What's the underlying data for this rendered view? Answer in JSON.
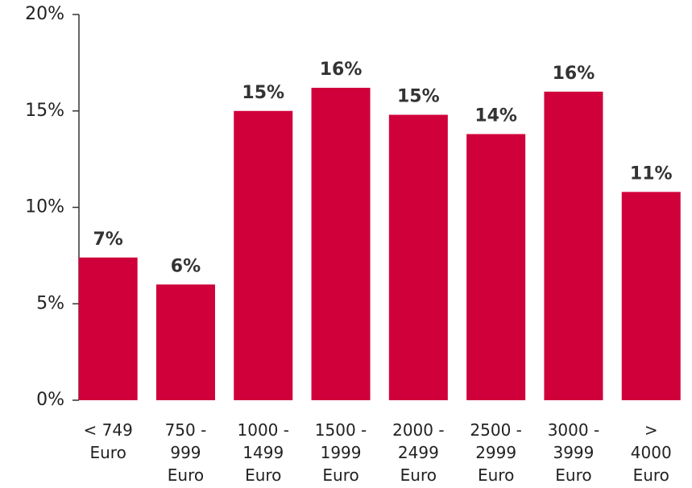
{
  "chart_data": {
    "type": "bar",
    "categories": [
      "< 749\nEuro",
      "750 -\n999\nEuro",
      "1000 -\n1499\nEuro",
      "1500 -\n1999\nEuro",
      "2000 -\n2499\nEuro",
      "2500 -\n2999\nEuro",
      "3000 -\n3999\nEuro",
      ">\n4000\nEuro"
    ],
    "values": [
      7.4,
      6.0,
      15.0,
      16.2,
      14.8,
      13.8,
      16.0,
      10.8
    ],
    "value_labels": [
      "7%",
      "6%",
      "15%",
      "16%",
      "15%",
      "14%",
      "16%",
      "11%"
    ],
    "color": "#d0003a",
    "ylim": [
      0,
      20
    ],
    "yticks": [
      {
        "value": 0,
        "label": "0%"
      },
      {
        "value": 5,
        "label": "5%"
      },
      {
        "value": 10,
        "label": "10%"
      },
      {
        "value": 15,
        "label": "15%"
      },
      {
        "value": 20,
        "label": "20%"
      }
    ],
    "grid": false
  }
}
